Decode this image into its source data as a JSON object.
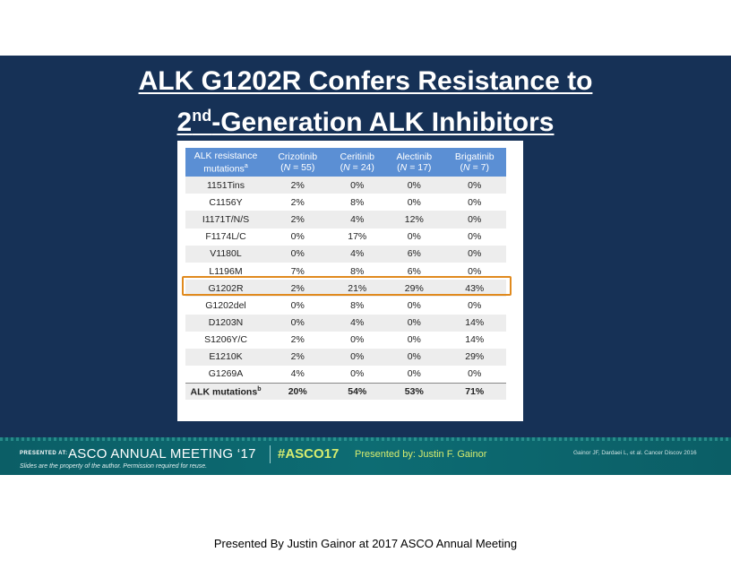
{
  "title": {
    "line1": "ALK G1202R Confers Resistance to",
    "line2_super": "2",
    "line2_sup": "nd",
    "line2_rest": "-Generation ALK Inhibitors"
  },
  "table": {
    "header": {
      "col0_line1": "ALK resistance",
      "col0_line2": "mutations",
      "col0_sup": "a",
      "drugs": [
        {
          "name": "Crizotinib",
          "n": "= 55)"
        },
        {
          "name": "Ceritinib",
          "n": "= 24)"
        },
        {
          "name": "Alectinib",
          "n": "= 17)"
        },
        {
          "name": "Brigatinib",
          "n": "= 7)"
        }
      ],
      "n_open": "(",
      "n_label": "N"
    },
    "rows": [
      {
        "mutation": "1151Tins",
        "values": [
          "2%",
          "0%",
          "0%",
          "0%"
        ]
      },
      {
        "mutation": "C1156Y",
        "values": [
          "2%",
          "8%",
          "0%",
          "0%"
        ]
      },
      {
        "mutation": "I1171T/N/S",
        "values": [
          "2%",
          "4%",
          "12%",
          "0%"
        ]
      },
      {
        "mutation": "F1174L/C",
        "values": [
          "0%",
          "17%",
          "0%",
          "0%"
        ]
      },
      {
        "mutation": "V1180L",
        "values": [
          "0%",
          "4%",
          "6%",
          "0%"
        ]
      },
      {
        "mutation": "L1196M",
        "values": [
          "7%",
          "8%",
          "6%",
          "0%"
        ]
      },
      {
        "mutation": "G1202R",
        "values": [
          "2%",
          "21%",
          "29%",
          "43%"
        ]
      },
      {
        "mutation": "G1202del",
        "values": [
          "0%",
          "8%",
          "0%",
          "0%"
        ]
      },
      {
        "mutation": "D1203N",
        "values": [
          "0%",
          "4%",
          "0%",
          "14%"
        ]
      },
      {
        "mutation": "S1206Y/C",
        "values": [
          "2%",
          "0%",
          "0%",
          "14%"
        ]
      },
      {
        "mutation": "E1210K",
        "values": [
          "2%",
          "0%",
          "0%",
          "29%"
        ]
      },
      {
        "mutation": "G1269A",
        "values": [
          "4%",
          "0%",
          "0%",
          "0%"
        ]
      }
    ],
    "total": {
      "label": "ALK mutations",
      "sup": "b",
      "values": [
        "20%",
        "54%",
        "53%",
        "71%"
      ]
    }
  },
  "banner": {
    "presented_at": "PRESENTED AT:",
    "meeting": "ASCO ANNUAL MEETING ‘17",
    "hashtag": "#ASCO17",
    "presenter": "Presented by: Justin F. Gainor",
    "citation": "Gainor JF, Dardaei L, et al. Cancer Discov 2016",
    "slides_note": "Slides are the property of the author. Permission required for reuse."
  },
  "caption": "Presented By Justin Gainor at 2017 ASCO Annual Meeting",
  "colors": {
    "slide_bg": "#163156",
    "header_bg": "#5b8fd4",
    "highlight": "#e08a1e",
    "banner_bg": "#0d6c73",
    "accent_green": "#d6ec6f"
  }
}
